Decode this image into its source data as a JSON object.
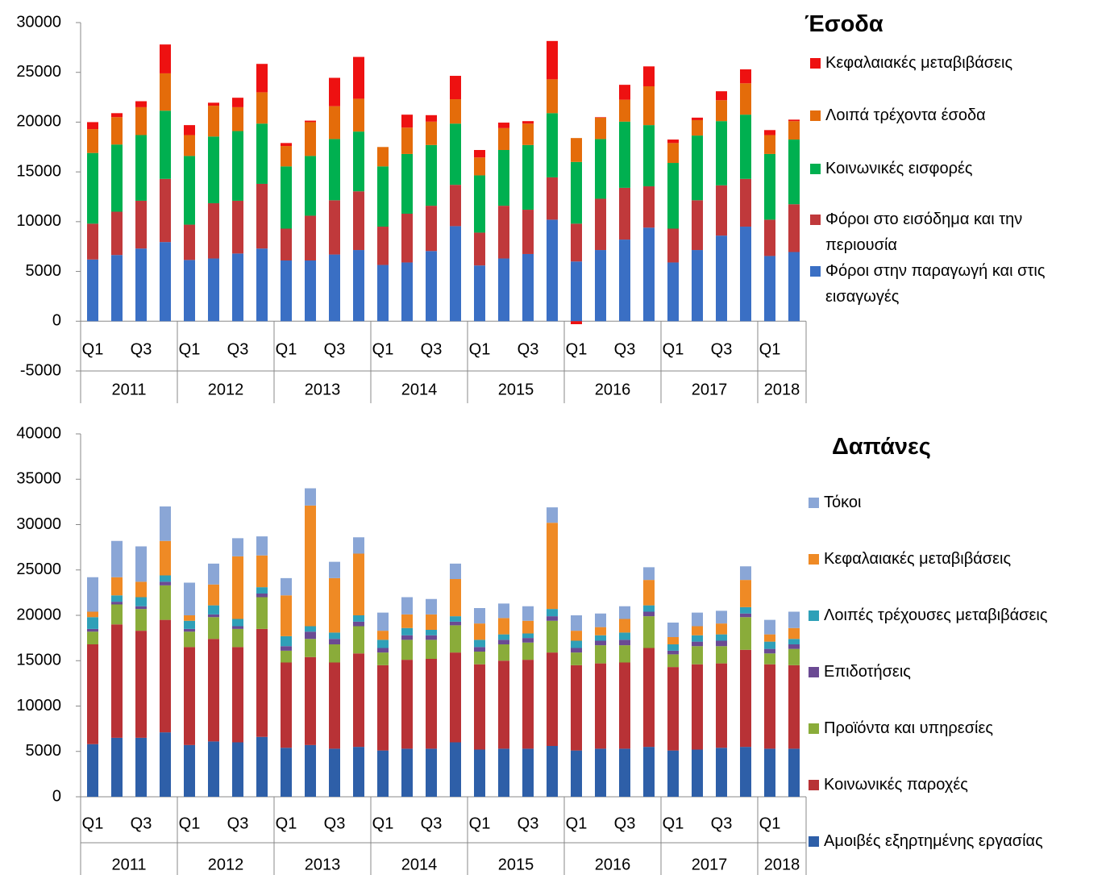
{
  "chart_data": [
    {
      "type": "bar",
      "stacked": true,
      "title": "Έσοδα",
      "categories": [
        "Q1",
        null,
        "Q3",
        null,
        "Q1",
        null,
        "Q3",
        null,
        "Q1",
        null,
        "Q3",
        null,
        "Q1",
        null,
        "Q3",
        null,
        "Q1",
        null,
        "Q3",
        null,
        "Q1",
        null,
        "Q3",
        null,
        "Q1",
        null,
        "Q3",
        null,
        "Q1",
        null
      ],
      "groups": [
        "2011",
        "2012",
        "2013",
        "2014",
        "2015",
        "2016",
        "2017",
        "2018"
      ],
      "ylim": [
        -5000,
        30000
      ],
      "yticks": [
        -5000,
        0,
        5000,
        10000,
        15000,
        20000,
        25000,
        30000
      ],
      "grid": false,
      "series": [
        {
          "name": "Φόροι στην παραγωγή και στις εισαγωγές",
          "color": "#3a6fc4",
          "values": [
            6200,
            6650,
            7300,
            7950,
            6150,
            6300,
            6800,
            7300,
            6100,
            6100,
            6700,
            7150,
            5650,
            5900,
            7050,
            9550,
            5600,
            6300,
            6750,
            10200,
            6000,
            7150,
            8200,
            9400,
            5900,
            7150,
            8600,
            9500,
            6550,
            6950
          ]
        },
        {
          "name": "Φόροι στο εισόδημα και την περιουσία",
          "color": "#c0393b",
          "values": [
            3600,
            4350,
            4800,
            6350,
            3550,
            5550,
            5300,
            6500,
            3200,
            4500,
            5450,
            5900,
            3850,
            4900,
            4550,
            4150,
            3300,
            5300,
            4450,
            4250,
            3800,
            5150,
            5200,
            4150,
            3400,
            5000,
            5050,
            4800,
            3650,
            4800
          ]
        },
        {
          "name": "Κοινωνικές εισφορές",
          "color": "#00b050",
          "values": [
            7100,
            6750,
            6600,
            6850,
            6900,
            6700,
            7000,
            6050,
            6250,
            6000,
            6150,
            6000,
            6050,
            6000,
            6100,
            6150,
            5750,
            5600,
            6500,
            6450,
            6200,
            6000,
            6650,
            6150,
            6600,
            6500,
            6450,
            6450,
            6600,
            6500
          ]
        },
        {
          "name": "Λοιπά τρέχοντα έσοδα",
          "color": "#e46c0a",
          "values": [
            2400,
            2750,
            2800,
            3750,
            2100,
            3100,
            2400,
            3150,
            2050,
            3400,
            3300,
            3300,
            1950,
            2650,
            2350,
            2450,
            1800,
            2200,
            2150,
            3400,
            2400,
            2150,
            2200,
            3900,
            2000,
            1550,
            2100,
            3150,
            1900,
            1850
          ]
        },
        {
          "name": "Κεφαλαιακές μεταβιβάσεις",
          "color": "#ee1111",
          "values": [
            700,
            400,
            600,
            2900,
            1000,
            300,
            950,
            2850,
            300,
            150,
            2850,
            4200,
            0,
            1300,
            650,
            2350,
            750,
            550,
            250,
            3850,
            -300,
            50,
            1500,
            2000,
            350,
            250,
            900,
            1400,
            500,
            150
          ]
        }
      ]
    },
    {
      "type": "bar",
      "stacked": true,
      "title": "Δαπάνες",
      "categories": [
        "Q1",
        null,
        "Q3",
        null,
        "Q1",
        null,
        "Q3",
        null,
        "Q1",
        null,
        "Q3",
        null,
        "Q1",
        null,
        "Q3",
        null,
        "Q1",
        null,
        "Q3",
        null,
        "Q1",
        null,
        "Q3",
        null,
        "Q1",
        null,
        "Q3",
        null,
        "Q1",
        null
      ],
      "groups": [
        "2011",
        "2012",
        "2013",
        "2014",
        "2015",
        "2016",
        "2017",
        "2018"
      ],
      "ylim": [
        0,
        40000
      ],
      "yticks": [
        0,
        5000,
        10000,
        15000,
        20000,
        25000,
        30000,
        35000,
        40000
      ],
      "grid": false,
      "series": [
        {
          "name": "Αμοιβές εξηρτημένης εργασίας",
          "color": "#2e5fa8",
          "values": [
            5800,
            6500,
            6500,
            7100,
            5700,
            6100,
            6000,
            6600,
            5400,
            5700,
            5300,
            5500,
            5100,
            5300,
            5300,
            6000,
            5200,
            5300,
            5300,
            5600,
            5100,
            5300,
            5300,
            5500,
            5100,
            5200,
            5400,
            5500,
            5300,
            5300
          ]
        },
        {
          "name": "Κοινωνικές παροχές",
          "color": "#b83236",
          "values": [
            11000,
            12500,
            11800,
            12400,
            10800,
            11300,
            10500,
            11900,
            9400,
            9700,
            9500,
            10300,
            9400,
            9800,
            9900,
            9900,
            9400,
            9700,
            9800,
            10300,
            9400,
            9400,
            9500,
            10900,
            9200,
            9400,
            9300,
            10700,
            9300,
            9200
          ]
        },
        {
          "name": "Προϊόντα και υπηρεσίες",
          "color": "#8aac3a",
          "values": [
            1400,
            2200,
            2400,
            3800,
            1700,
            2400,
            2000,
            3500,
            1300,
            2000,
            2000,
            3000,
            1400,
            2200,
            2100,
            3000,
            1400,
            1800,
            1900,
            3500,
            1400,
            2000,
            1900,
            3500,
            1400,
            2000,
            1900,
            3600,
            1200,
            1800
          ]
        },
        {
          "name": "Επιδοτήσεις",
          "color": "#6b4a93",
          "values": [
            300,
            300,
            300,
            400,
            300,
            300,
            300,
            400,
            500,
            800,
            600,
            500,
            500,
            500,
            500,
            400,
            500,
            500,
            500,
            500,
            500,
            500,
            600,
            500,
            400,
            500,
            600,
            400,
            500,
            500
          ]
        },
        {
          "name": "Λοιπές τρέχουσες μεταβιβάσεις",
          "color": "#2fa0b8",
          "values": [
            1300,
            700,
            1000,
            700,
            900,
            1000,
            800,
            700,
            1100,
            600,
            700,
            700,
            900,
            800,
            600,
            600,
            800,
            600,
            500,
            800,
            800,
            600,
            800,
            700,
            700,
            700,
            700,
            700,
            800,
            600
          ]
        },
        {
          "name": "Κεφαλαιακές μεταβιβάσεις",
          "color": "#ef8a25",
          "values": [
            600,
            2000,
            1700,
            3800,
            600,
            2300,
            6900,
            3500,
            4500,
            13300,
            6000,
            6800,
            1000,
            1500,
            1700,
            4100,
            1800,
            1800,
            1400,
            9500,
            1100,
            900,
            1500,
            2800,
            800,
            1000,
            1200,
            3000,
            800,
            1200
          ]
        },
        {
          "name": "Τόκοι",
          "color": "#8aa6d6",
          "values": [
            3800,
            4000,
            3900,
            3800,
            3600,
            2300,
            2000,
            2100,
            1900,
            1900,
            1800,
            1800,
            2000,
            1900,
            1700,
            1700,
            1700,
            1600,
            1600,
            1700,
            1700,
            1500,
            1400,
            1400,
            1600,
            1500,
            1400,
            1500,
            1600,
            1800
          ]
        }
      ]
    }
  ]
}
